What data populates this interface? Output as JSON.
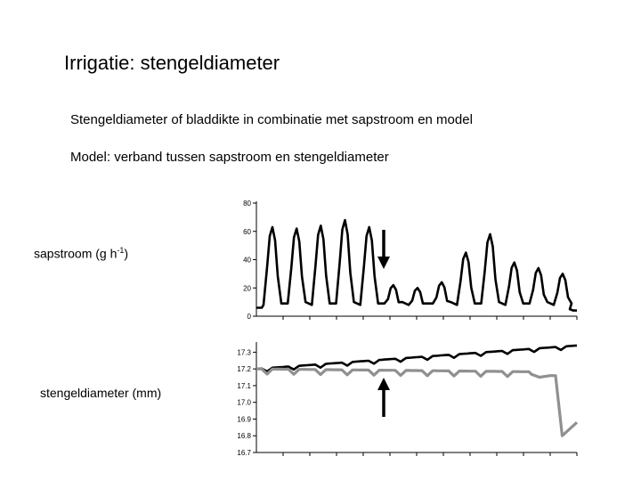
{
  "slide": {
    "title": "Irrigatie: stengeldiameter",
    "line1": "Stengeldiameter of bladdikte in combinatie met sapstroom en model",
    "line2": "Model: verband tussen sapstroom en stengeldiameter"
  },
  "chart_data": [
    {
      "type": "line",
      "title": "",
      "ylabel_text": "sapstroom (g h",
      "ylabel_exp": "-1",
      "ylabel_close": ")",
      "ylim": [
        0,
        80
      ],
      "yticks": [
        "80",
        "60",
        "40",
        "20",
        "0"
      ],
      "ytick_values": [
        80,
        60,
        40,
        20,
        0
      ],
      "days": 12,
      "grid": false,
      "series": [
        {
          "color": "#000000",
          "peaks": [
            63,
            62,
            64,
            68,
            63,
            22,
            20,
            24,
            45,
            58,
            38,
            34,
            30
          ]
        }
      ],
      "annotation": {
        "type": "arrow",
        "direction": "down",
        "at_day": 4.7,
        "color": "#000000"
      }
    },
    {
      "type": "line",
      "title": "",
      "ylabel": "stengeldiameter (mm)",
      "ylim": [
        16.7,
        17.35
      ],
      "yticks": [
        "17.3",
        "17.2",
        "17.1",
        "17.0",
        "16.9",
        "16.8",
        "16.7"
      ],
      "ytick_values": [
        17.3,
        17.2,
        17.1,
        17.0,
        16.9,
        16.8,
        16.7
      ],
      "days": 12,
      "grid": false,
      "series": [
        {
          "color": "#000000",
          "start": 17.2,
          "end": 17.34,
          "dip": 0.02
        },
        {
          "color": "#909090",
          "start": 17.2,
          "end": 17.16,
          "drop_to": 16.8,
          "final": 16.88,
          "dip": 0.03
        }
      ],
      "annotation": {
        "type": "arrow",
        "direction": "up",
        "at_day": 4.7,
        "color": "#000000"
      }
    }
  ]
}
